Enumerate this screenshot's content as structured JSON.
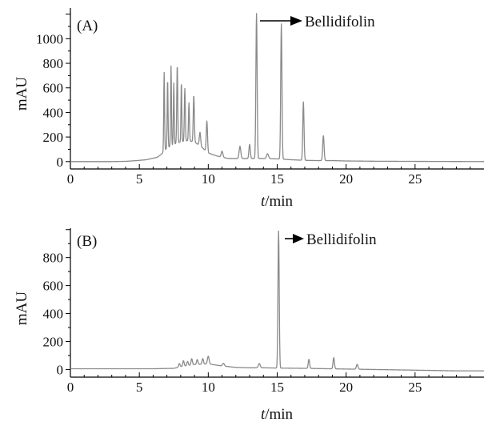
{
  "chart_data": [
    {
      "type": "line",
      "panel_label": "(A)",
      "xlabel_italic": "t",
      "xlabel_rest": "/min",
      "ylabel": "mAU",
      "xlim": [
        0,
        30
      ],
      "ylim": [
        -60,
        1250
      ],
      "xticks": [
        0,
        5,
        10,
        15,
        20,
        25
      ],
      "yticks": [
        0,
        200,
        400,
        600,
        800,
        1000
      ],
      "annotation": {
        "text": "Bellidifolin",
        "peak_x": 13.5
      },
      "line_color": "#8a8a8a",
      "baseline": [
        [
          0,
          0
        ],
        [
          3,
          0
        ],
        [
          4,
          2
        ],
        [
          4.8,
          8
        ],
        [
          5.5,
          15
        ],
        [
          6.3,
          35
        ],
        [
          6.6,
          60
        ],
        [
          7,
          110
        ],
        [
          7.5,
          140
        ],
        [
          8,
          160
        ],
        [
          8.5,
          170
        ],
        [
          9,
          160
        ],
        [
          9.5,
          120
        ],
        [
          10,
          70
        ],
        [
          10.5,
          50
        ],
        [
          11,
          35
        ],
        [
          11.5,
          25
        ],
        [
          12,
          25
        ],
        [
          12.5,
          25
        ],
        [
          13,
          25
        ],
        [
          14,
          25
        ],
        [
          15,
          22
        ],
        [
          16,
          15
        ],
        [
          17,
          10
        ],
        [
          18,
          8
        ],
        [
          19,
          8
        ],
        [
          20,
          5
        ],
        [
          22,
          3
        ],
        [
          24,
          2
        ],
        [
          27,
          1
        ],
        [
          30,
          0
        ]
      ],
      "peaks": [
        {
          "x": 6.8,
          "h": 640,
          "w": 0.03
        },
        {
          "x": 7.05,
          "h": 560,
          "w": 0.03
        },
        {
          "x": 7.3,
          "h": 650,
          "w": 0.03
        },
        {
          "x": 7.5,
          "h": 500,
          "w": 0.03
        },
        {
          "x": 7.75,
          "h": 640,
          "w": 0.035
        },
        {
          "x": 8.05,
          "h": 490,
          "w": 0.03
        },
        {
          "x": 8.3,
          "h": 430,
          "w": 0.035
        },
        {
          "x": 8.6,
          "h": 310,
          "w": 0.035
        },
        {
          "x": 8.95,
          "h": 380,
          "w": 0.04
        },
        {
          "x": 9.4,
          "h": 110,
          "w": 0.05
        },
        {
          "x": 9.9,
          "h": 250,
          "w": 0.045
        },
        {
          "x": 11.0,
          "h": 50,
          "w": 0.06
        },
        {
          "x": 12.3,
          "h": 100,
          "w": 0.06
        },
        {
          "x": 13.0,
          "h": 115,
          "w": 0.05
        },
        {
          "x": 13.5,
          "h": 1180,
          "w": 0.045
        },
        {
          "x": 14.3,
          "h": 40,
          "w": 0.07
        },
        {
          "x": 15.3,
          "h": 1100,
          "w": 0.045
        },
        {
          "x": 16.9,
          "h": 475,
          "w": 0.045
        },
        {
          "x": 18.35,
          "h": 205,
          "w": 0.05
        }
      ]
    },
    {
      "type": "line",
      "panel_label": "(B)",
      "xlabel_italic": "t",
      "xlabel_rest": "/min",
      "ylabel": "mAU",
      "xlim": [
        0,
        30
      ],
      "ylim": [
        -55,
        1010
      ],
      "xticks": [
        0,
        5,
        10,
        15,
        20,
        25
      ],
      "yticks": [
        0,
        200,
        400,
        600,
        800
      ],
      "annotation": {
        "text": "Bellidifolin",
        "peak_x": 15.1
      },
      "line_color": "#8a8a8a",
      "baseline": [
        [
          0,
          5
        ],
        [
          6,
          5
        ],
        [
          7.5,
          8
        ],
        [
          8,
          20
        ],
        [
          9,
          35
        ],
        [
          10,
          40
        ],
        [
          11,
          25
        ],
        [
          12,
          15
        ],
        [
          13,
          12
        ],
        [
          14,
          12
        ],
        [
          15,
          10
        ],
        [
          17,
          8
        ],
        [
          20,
          3
        ],
        [
          25,
          -5
        ],
        [
          28,
          -10
        ],
        [
          30,
          -10
        ]
      ],
      "peaks": [
        {
          "x": 7.9,
          "h": 25,
          "w": 0.05
        },
        {
          "x": 8.2,
          "h": 40,
          "w": 0.05
        },
        {
          "x": 8.5,
          "h": 30,
          "w": 0.05
        },
        {
          "x": 8.8,
          "h": 45,
          "w": 0.05
        },
        {
          "x": 9.2,
          "h": 35,
          "w": 0.05
        },
        {
          "x": 9.6,
          "h": 40,
          "w": 0.05
        },
        {
          "x": 10.0,
          "h": 55,
          "w": 0.06
        },
        {
          "x": 11.1,
          "h": 20,
          "w": 0.07
        },
        {
          "x": 13.7,
          "h": 30,
          "w": 0.07
        },
        {
          "x": 15.1,
          "h": 980,
          "w": 0.045
        },
        {
          "x": 17.3,
          "h": 65,
          "w": 0.05
        },
        {
          "x": 19.1,
          "h": 80,
          "w": 0.05
        },
        {
          "x": 20.8,
          "h": 35,
          "w": 0.06
        }
      ]
    }
  ]
}
